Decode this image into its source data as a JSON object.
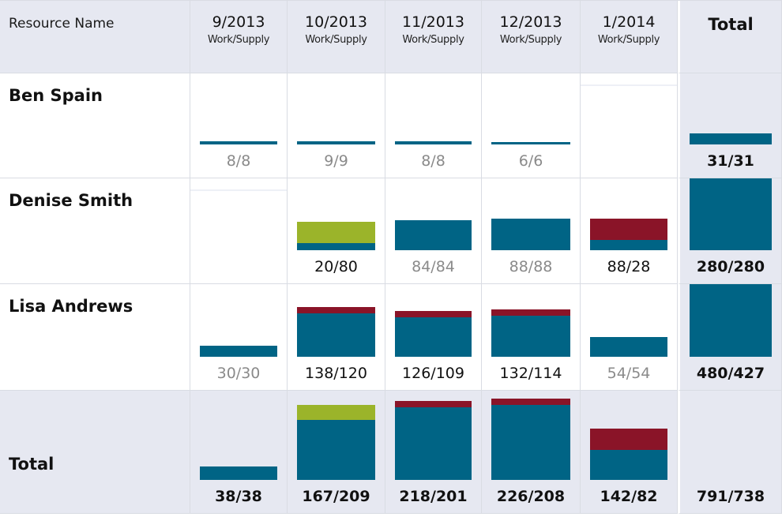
{
  "colors": {
    "work": "#006485",
    "underallocation": "#9bb42a",
    "overallocation": "#8a1428",
    "header_bg": "#e6e8f1"
  },
  "header": {
    "resource_name": "Resource Name",
    "total": "Total",
    "months": [
      {
        "label": "9/2013",
        "sub": "Work/Supply"
      },
      {
        "label": "10/2013",
        "sub": "Work/Supply"
      },
      {
        "label": "11/2013",
        "sub": "Work/Supply"
      },
      {
        "label": "12/2013",
        "sub": "Work/Supply"
      },
      {
        "label": "1/2014",
        "sub": "Work/Supply"
      }
    ]
  },
  "rows": [
    {
      "name": "Ben Spain",
      "cells": [
        {
          "value": "8/8",
          "work": 8,
          "supply": 8,
          "style": "dim"
        },
        {
          "value": "9/9",
          "work": 9,
          "supply": 9,
          "style": "dim"
        },
        {
          "value": "8/8",
          "work": 8,
          "supply": 8,
          "style": "dim"
        },
        {
          "value": "6/6",
          "work": 6,
          "supply": 6,
          "style": "dim"
        },
        {
          "value": "",
          "work": 0,
          "supply": 0,
          "style": "dim"
        }
      ],
      "total": {
        "value": "31/31",
        "work": 31,
        "supply": 31,
        "style": "bold"
      }
    },
    {
      "name": "Denise Smith",
      "cells": [
        {
          "value": "",
          "work": 0,
          "supply": 0,
          "style": "dim"
        },
        {
          "value": "20/80",
          "work": 20,
          "supply": 80,
          "style": "dark"
        },
        {
          "value": "84/84",
          "work": 84,
          "supply": 84,
          "style": "dim"
        },
        {
          "value": "88/88",
          "work": 88,
          "supply": 88,
          "style": "dim"
        },
        {
          "value": "88/28",
          "work": 88,
          "supply": 28,
          "style": "dark"
        }
      ],
      "total": {
        "value": "280/280",
        "work": 280,
        "supply": 280,
        "style": "bold"
      }
    },
    {
      "name": "Lisa Andrews",
      "cells": [
        {
          "value": "30/30",
          "work": 30,
          "supply": 30,
          "style": "dim"
        },
        {
          "value": "138/120",
          "work": 138,
          "supply": 120,
          "style": "dark"
        },
        {
          "value": "126/109",
          "work": 126,
          "supply": 109,
          "style": "dark"
        },
        {
          "value": "132/114",
          "work": 132,
          "supply": 114,
          "style": "dark"
        },
        {
          "value": "54/54",
          "work": 54,
          "supply": 54,
          "style": "dim"
        }
      ],
      "total": {
        "value": "480/427",
        "work": 480,
        "supply": 427,
        "style": "bold"
      }
    },
    {
      "name": "Total",
      "cells": [
        {
          "value": "38/38",
          "work": 38,
          "supply": 38,
          "style": "bold"
        },
        {
          "value": "167/209",
          "work": 167,
          "supply": 209,
          "style": "bold"
        },
        {
          "value": "218/201",
          "work": 218,
          "supply": 201,
          "style": "bold"
        },
        {
          "value": "226/208",
          "work": 226,
          "supply": 208,
          "style": "bold"
        },
        {
          "value": "142/82",
          "work": 142,
          "supply": 82,
          "style": "bold"
        }
      ],
      "total": {
        "value": "791/738",
        "work": 791,
        "supply": 738,
        "style": "bold",
        "no_bar": true
      }
    }
  ]
}
